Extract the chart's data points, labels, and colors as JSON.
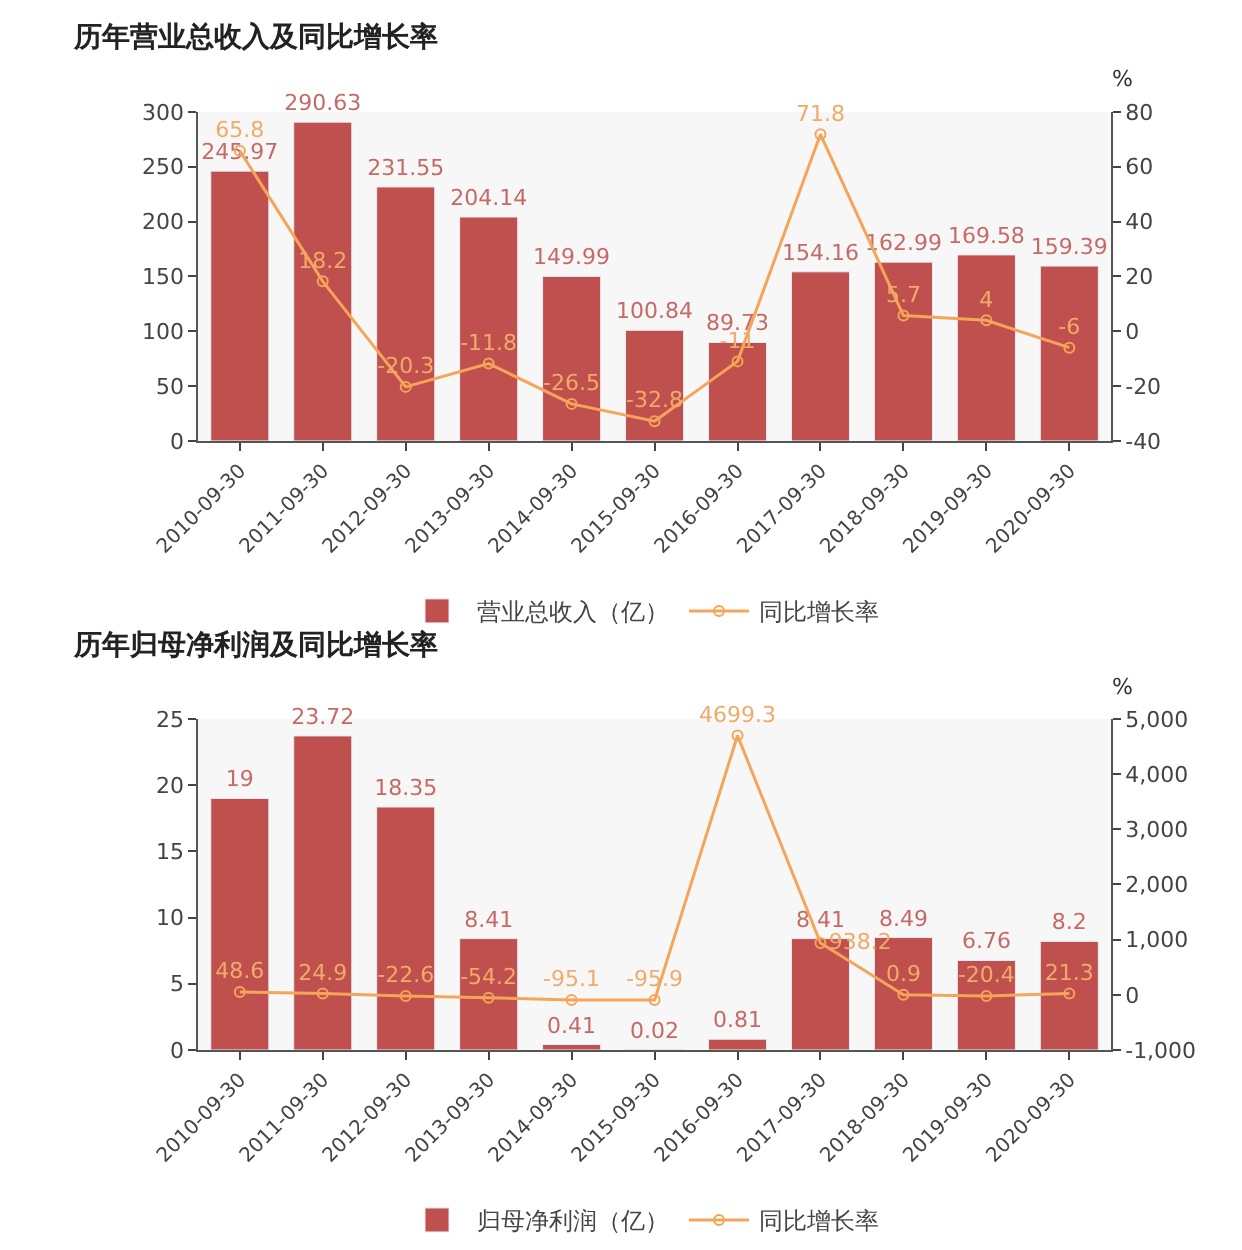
{
  "chart_data": [
    {
      "type": "bar",
      "title": "历年营业总收入及同比增长率",
      "categories": [
        "2010-09-30",
        "2011-09-30",
        "2012-09-30",
        "2013-09-30",
        "2014-09-30",
        "2015-09-30",
        "2016-09-30",
        "2017-09-30",
        "2018-09-30",
        "2019-09-30",
        "2020-09-30"
      ],
      "series": [
        {
          "name": "营业总收入（亿）",
          "color": "#c0504d",
          "values": [
            245.97,
            290.63,
            231.55,
            204.14,
            149.99,
            100.84,
            89.73,
            154.16,
            162.99,
            169.58,
            159.39
          ]
        },
        {
          "name": "同比增长率",
          "type": "line",
          "axis": "y2",
          "color": "#f5a55a",
          "marker": "circle",
          "values": [
            65.8,
            18.2,
            -20.3,
            -11.8,
            -26.5,
            -32.8,
            -11,
            71.8,
            5.7,
            4,
            -6
          ]
        }
      ],
      "ylim": [
        0,
        300
      ],
      "yticks": [
        0,
        50,
        100,
        150,
        200,
        250,
        300
      ],
      "y2lim": [
        -40,
        80
      ],
      "y2ticks": [
        -40,
        -20,
        0,
        20,
        40,
        60,
        80
      ],
      "y2label": "%",
      "data_labels": true,
      "legend": "bottom",
      "grid": false
    },
    {
      "type": "bar",
      "title": "历年归母净利润及同比增长率",
      "categories": [
        "2010-09-30",
        "2011-09-30",
        "2012-09-30",
        "2013-09-30",
        "2014-09-30",
        "2015-09-30",
        "2016-09-30",
        "2017-09-30",
        "2018-09-30",
        "2019-09-30",
        "2020-09-30"
      ],
      "series": [
        {
          "name": "归母净利润（亿）",
          "color": "#c0504d",
          "values": [
            19,
            23.72,
            18.35,
            8.41,
            0.41,
            0.02,
            0.81,
            8.41,
            8.49,
            6.76,
            8.2
          ]
        },
        {
          "name": "同比增长率",
          "type": "line",
          "axis": "y2",
          "color": "#f5a55a",
          "marker": "circle",
          "values": [
            48.6,
            24.9,
            -22.6,
            -54.2,
            -95.1,
            -95.9,
            4699.3,
            938.2,
            0.9,
            -20.4,
            21.3
          ]
        }
      ],
      "ylim": [
        0,
        25
      ],
      "yticks": [
        0,
        5,
        10,
        15,
        20,
        25
      ],
      "y2lim": [
        -1000,
        5000
      ],
      "y2ticks": [
        {
          "value": -1000,
          "label": "-1,000"
        },
        0,
        {
          "value": 1000,
          "label": "1,000"
        },
        {
          "value": 2000,
          "label": "2,000"
        },
        {
          "value": 3000,
          "label": "3,000"
        },
        {
          "value": 4000,
          "label": "4,000"
        },
        {
          "value": 5000,
          "label": "5,000"
        }
      ],
      "y2label": "%",
      "data_labels": true,
      "legend": "bottom",
      "grid": false
    }
  ]
}
